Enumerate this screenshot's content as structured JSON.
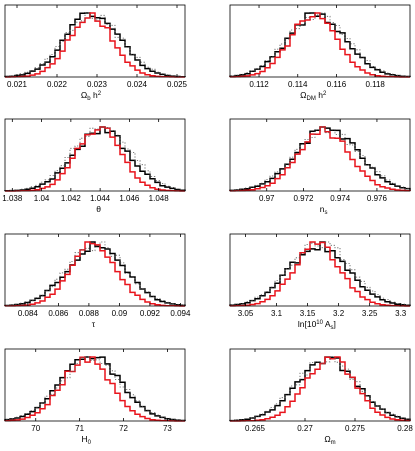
{
  "figure": {
    "description_free": true
  },
  "colors": {
    "black": "#000000",
    "red": "#e8141c",
    "dotted": "#555555",
    "axes": "#000000"
  },
  "chart_data": [
    {
      "type": "line",
      "xlabel": "Ω_b h²",
      "xlabel_parts": {
        "base": "Ω",
        "sub": "b",
        "mid": " h",
        "sup": "2"
      },
      "xticks": [
        0.021,
        0.022,
        0.023,
        0.024,
        0.025
      ],
      "xtick_labels": [
        "0.021",
        "0.022",
        "0.023",
        "0.024",
        "0.025"
      ],
      "xlim": [
        0.0207,
        0.0252
      ],
      "peak": 0.02285,
      "series": [
        {
          "style": "black",
          "center": 0.0229,
          "sigma": 0.00068
        },
        {
          "style": "red",
          "center": 0.02285,
          "sigma": 0.00055
        },
        {
          "style": "dotted",
          "center": 0.0229,
          "sigma": 0.00072
        }
      ]
    },
    {
      "type": "line",
      "xlabel": "Ω_DM h²",
      "xlabel_parts": {
        "base": "Ω",
        "sub": "DM",
        "mid": " h",
        "sup": "2"
      },
      "xticks": [
        0.112,
        0.114,
        0.116,
        0.118
      ],
      "xtick_labels": [
        "0.112",
        "0.114",
        "0.116",
        "0.118"
      ],
      "xlim": [
        0.1105,
        0.1198
      ],
      "peak": 0.1148,
      "series": [
        {
          "style": "black",
          "center": 0.115,
          "sigma": 0.0015
        },
        {
          "style": "red",
          "center": 0.1148,
          "sigma": 0.0012
        },
        {
          "style": "dotted",
          "center": 0.115,
          "sigma": 0.00155
        }
      ]
    },
    {
      "type": "line",
      "xlabel": "θ",
      "xlabel_parts": {
        "base": "θ"
      },
      "xticks": [
        1.038,
        1.04,
        1.042,
        1.044,
        1.046,
        1.048
      ],
      "xtick_labels": [
        "1.038",
        "1.04",
        "1.042",
        "1.044",
        "1.046",
        "1.048"
      ],
      "xlim": [
        1.0375,
        1.0498
      ],
      "peak": 1.0439,
      "series": [
        {
          "style": "black",
          "center": 1.0441,
          "sigma": 0.0019
        },
        {
          "style": "red",
          "center": 1.0439,
          "sigma": 0.0015
        },
        {
          "style": "dotted",
          "center": 1.0441,
          "sigma": 0.002
        }
      ]
    },
    {
      "type": "line",
      "xlabel": "n_s",
      "xlabel_parts": {
        "base": "n",
        "sub": "s"
      },
      "xticks": [
        0.97,
        0.972,
        0.974,
        0.976
      ],
      "xtick_labels": [
        "0.97",
        "0.972",
        "0.974",
        "0.976"
      ],
      "xlim": [
        0.968,
        0.9778
      ],
      "peak": 0.9731,
      "series": [
        {
          "style": "black",
          "center": 0.9733,
          "sigma": 0.0017
        },
        {
          "style": "red",
          "center": 0.9731,
          "sigma": 0.0014
        },
        {
          "style": "dotted",
          "center": 0.9733,
          "sigma": 0.00175
        }
      ]
    },
    {
      "type": "line",
      "xlabel": "τ",
      "xlabel_parts": {
        "base": "τ"
      },
      "xticks": [
        0.084,
        0.086,
        0.088,
        0.09,
        0.092,
        0.094
      ],
      "xtick_labels": [
        "0.084",
        "0.086",
        "0.088",
        "0.09",
        "0.092",
        "0.094"
      ],
      "xlim": [
        0.0825,
        0.0943
      ],
      "peak": 0.0883,
      "series": [
        {
          "style": "black",
          "center": 0.0885,
          "sigma": 0.0019
        },
        {
          "style": "red",
          "center": 0.0883,
          "sigma": 0.0015
        },
        {
          "style": "dotted",
          "center": 0.0885,
          "sigma": 0.00195
        }
      ]
    },
    {
      "type": "line",
      "xlabel": "ln[10¹⁰ A_s]",
      "xlabel_parts": {
        "base": "ln[10",
        "sup": "10",
        "mid": " A",
        "sub": "s",
        "tail": "]"
      },
      "xticks": [
        3.05,
        3.1,
        3.15,
        3.2,
        3.25,
        3.3
      ],
      "xtick_labels": [
        "3.05",
        "3.1",
        "3.15",
        "3.2",
        "3.25",
        "3.3"
      ],
      "xlim": [
        3.025,
        3.315
      ],
      "peak": 3.165,
      "series": [
        {
          "style": "black",
          "center": 3.168,
          "sigma": 0.048
        },
        {
          "style": "red",
          "center": 3.165,
          "sigma": 0.038
        },
        {
          "style": "dotted",
          "center": 3.17,
          "sigma": 0.05
        }
      ]
    },
    {
      "type": "line",
      "xlabel": "H_0",
      "xlabel_parts": {
        "base": "H",
        "sub": "0"
      },
      "xticks": [
        70,
        71,
        72,
        73
      ],
      "xtick_labels": [
        "70",
        "71",
        "72",
        "73"
      ],
      "xlim": [
        69.3,
        73.4
      ],
      "peak": 71.15,
      "series": [
        {
          "style": "black",
          "center": 71.25,
          "sigma": 0.68
        },
        {
          "style": "red",
          "center": 71.15,
          "sigma": 0.55
        },
        {
          "style": "dotted",
          "center": 71.25,
          "sigma": 0.7
        }
      ]
    },
    {
      "type": "line",
      "xlabel": "Ω_m",
      "xlabel_parts": {
        "base": "Ω",
        "sub": "m"
      },
      "xticks": [
        0.265,
        0.27,
        0.275,
        0.28
      ],
      "xtick_labels": [
        "0.265",
        "0.27",
        "0.275",
        "0.28"
      ],
      "xlim": [
        0.2625,
        0.2805
      ],
      "peak": 0.2725,
      "series": [
        {
          "style": "black",
          "center": 0.2722,
          "sigma": 0.003
        },
        {
          "style": "red",
          "center": 0.2725,
          "sigma": 0.0024
        },
        {
          "style": "dotted",
          "center": 0.2722,
          "sigma": 0.0031
        }
      ]
    }
  ]
}
